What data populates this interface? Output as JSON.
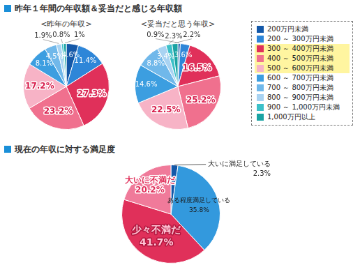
{
  "headings": [
    "昨年１年間の年収額＆妥当だと感じる年収額",
    "現在の年収に対する満足度"
  ],
  "chart_data": [
    {
      "type": "pie",
      "title": "<昨年の年収>",
      "categories": [
        "200万円未満",
        "200 ～ 300万円未満",
        "300 ～ 400万円未満",
        "400 ～ 500万円未満",
        "500 ～ 600万円未満",
        "600 ～ 700万円未満",
        "700 ～ 800万円未満",
        "800 ～ 900万円未満",
        "900 ～ 1,000万円未満",
        "1,000万円以上"
      ],
      "values": [
        4.6,
        11.4,
        27.3,
        23.2,
        17.2,
        8.1,
        4.5,
        1.9,
        0.8,
        1
      ],
      "value_labels": [
        "4.6%",
        "11.4%",
        "27.3%",
        "23.2%",
        "17.2%",
        "8.1%",
        "4.5%",
        "1.9%",
        "0.8%",
        "1%"
      ],
      "colors": [
        "#1458a8",
        "#2e86d8",
        "#e0305a",
        "#f0708e",
        "#f7b3c6",
        "#3c9ee0",
        "#70b8ea",
        "#a9d3f2",
        "#3cc0c8",
        "#1aa3a3"
      ],
      "data_labels": true,
      "legend": "right"
    },
    {
      "type": "pie",
      "title": "<妥当だと思う年収>",
      "categories": [
        "200万円未満",
        "200 ～ 300万円未満",
        "300 ～ 400万円未満",
        "400 ～ 500万円未満",
        "500 ～ 600万円未満",
        "600 ～ 700万円未満",
        "700 ～ 800万円未満",
        "800 ～ 900万円未満",
        "900 ～ 1,000万円未満",
        "1,000万円以上"
      ],
      "values": [
        0.9,
        3.6,
        16.5,
        25.2,
        22.5,
        14.6,
        8.8,
        3.4,
        2.3,
        2.2
      ],
      "value_labels": [
        "0.9%",
        "3.6%",
        "16.5%",
        "25.2%",
        "22.5%",
        "14.6%",
        "8.8%",
        "3.4%",
        "2.3%",
        "2.2%"
      ],
      "colors": [
        "#1458a8",
        "#2e86d8",
        "#e0305a",
        "#f0708e",
        "#f7b3c6",
        "#3c9ee0",
        "#70b8ea",
        "#a9d3f2",
        "#3cc0c8",
        "#1aa3a3"
      ],
      "data_labels": true,
      "legend": "right"
    },
    {
      "type": "pie",
      "categories": [
        "大いに満足している",
        "ある程度満足している",
        "少々不満だ",
        "大いに不満だ"
      ],
      "values": [
        2.3,
        35.8,
        41.7,
        20.2
      ],
      "value_labels": [
        "2.3%",
        "35.8%",
        "41.7%",
        "20.2%"
      ],
      "colors": [
        "#1458a8",
        "#3399dd",
        "#e0305a",
        "#f07a9a"
      ],
      "data_labels": true
    }
  ]
}
